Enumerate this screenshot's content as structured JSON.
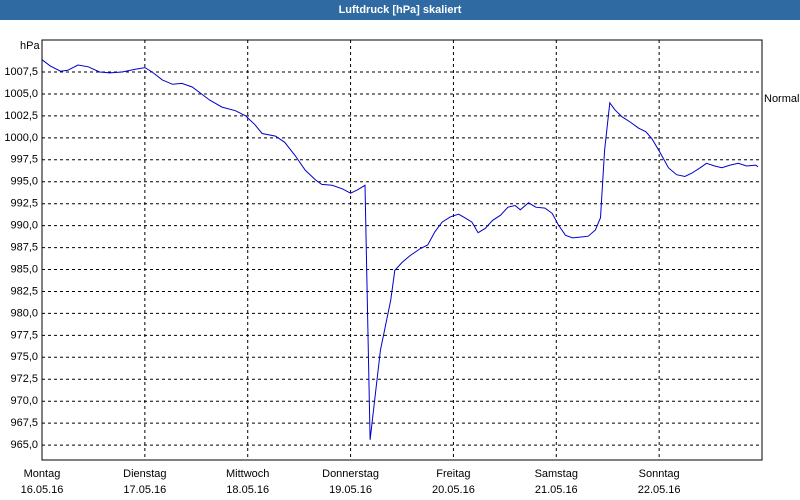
{
  "chart_data": {
    "type": "line",
    "title": "Luftdruck [hPa] skaliert",
    "y_label": "hPa",
    "color": "#0000cc",
    "grid": true,
    "xlim": [
      0,
      7
    ],
    "xticks": [
      {
        "value": 0,
        "label": "Montag\n16.05.16"
      },
      {
        "value": 1,
        "label": "Dienstag\n17.05.16"
      },
      {
        "value": 2,
        "label": "Mittwoch\n18.05.16"
      },
      {
        "value": 3,
        "label": "Donnerstag\n19.05.16"
      },
      {
        "value": 4,
        "label": "Freitag\n20.05.16"
      },
      {
        "value": 5,
        "label": "Samstag\n21.05.16"
      },
      {
        "value": 6,
        "label": "Sonntag\n22.05.16"
      }
    ],
    "ylim": [
      963.3,
      1011.15
    ],
    "yticks": [
      {
        "value": 965,
        "label": "965,0"
      },
      {
        "value": 967.5,
        "label": "967,5"
      },
      {
        "value": 970,
        "label": "970,0"
      },
      {
        "value": 972.5,
        "label": "972,5"
      },
      {
        "value": 975,
        "label": "975,0"
      },
      {
        "value": 977.5,
        "label": "977,5"
      },
      {
        "value": 980,
        "label": "980,0"
      },
      {
        "value": 982.5,
        "label": "982,5"
      },
      {
        "value": 985,
        "label": "985,0"
      },
      {
        "value": 987.5,
        "label": "987,5"
      },
      {
        "value": 990,
        "label": "990,0"
      },
      {
        "value": 992.5,
        "label": "992,5"
      },
      {
        "value": 995,
        "label": "995,0"
      },
      {
        "value": 997.5,
        "label": "997,5"
      },
      {
        "value": 1000,
        "label": "1000,0"
      },
      {
        "value": 1002.5,
        "label": "1002,5"
      },
      {
        "value": 1005,
        "label": "1005,0"
      },
      {
        "value": 1007.5,
        "label": "1007,5"
      }
    ],
    "annotations": [
      {
        "text": "Normal",
        "y": 1004.4
      }
    ],
    "x": [
      0,
      0.08,
      0.18,
      0.25,
      0.35,
      0.45,
      0.56,
      0.66,
      0.78,
      0.9,
      1.0,
      1.07,
      1.17,
      1.27,
      1.36,
      1.46,
      1.54,
      1.63,
      1.75,
      1.88,
      1.98,
      2.07,
      2.14,
      2.27,
      2.36,
      2.46,
      2.56,
      2.66,
      2.72,
      2.82,
      2.92,
      3.0,
      3.07,
      3.14,
      3.19,
      3.29,
      3.39,
      3.43,
      3.5,
      3.58,
      3.68,
      3.75,
      3.82,
      3.89,
      3.97,
      4.05,
      4.11,
      4.18,
      4.24,
      4.31,
      4.38,
      4.46,
      4.53,
      4.6,
      4.65,
      4.73,
      4.8,
      4.89,
      4.96,
      5.02,
      5.09,
      5.16,
      5.23,
      5.31,
      5.38,
      5.43,
      5.47,
      5.52,
      5.57,
      5.64,
      5.72,
      5.8,
      5.87,
      5.93,
      6.01,
      6.09,
      6.17,
      6.25,
      6.32,
      6.4,
      6.46,
      6.54,
      6.61,
      6.69,
      6.77,
      6.85,
      6.94,
      6.96
    ],
    "values": [
      1008.9,
      1008.2,
      1007.6,
      1007.7,
      1008.3,
      1008.1,
      1007.5,
      1007.4,
      1007.5,
      1007.8,
      1008.0,
      1007.5,
      1006.6,
      1006.1,
      1006.2,
      1005.8,
      1005.1,
      1004.3,
      1003.5,
      1003.1,
      1002.5,
      1001.5,
      1000.5,
      1000.2,
      999.5,
      998.0,
      996.3,
      995.2,
      994.7,
      994.6,
      994.2,
      993.7,
      994.1,
      994.6,
      965.6,
      975.8,
      981.5,
      984.9,
      985.8,
      986.6,
      987.4,
      987.8,
      989.3,
      990.4,
      991.0,
      991.3,
      990.9,
      990.4,
      989.2,
      989.7,
      990.6,
      991.2,
      992.1,
      992.3,
      991.8,
      992.6,
      992.1,
      992.0,
      991.4,
      990.1,
      988.9,
      988.6,
      988.7,
      988.8,
      989.5,
      990.9,
      998.6,
      1004.0,
      1003.2,
      1002.4,
      1001.8,
      1001.1,
      1000.7,
      999.9,
      998.3,
      996.6,
      995.8,
      995.6,
      996.0,
      996.6,
      997.1,
      996.8,
      996.6,
      996.9,
      997.1,
      996.8,
      996.9,
      996.7
    ]
  }
}
